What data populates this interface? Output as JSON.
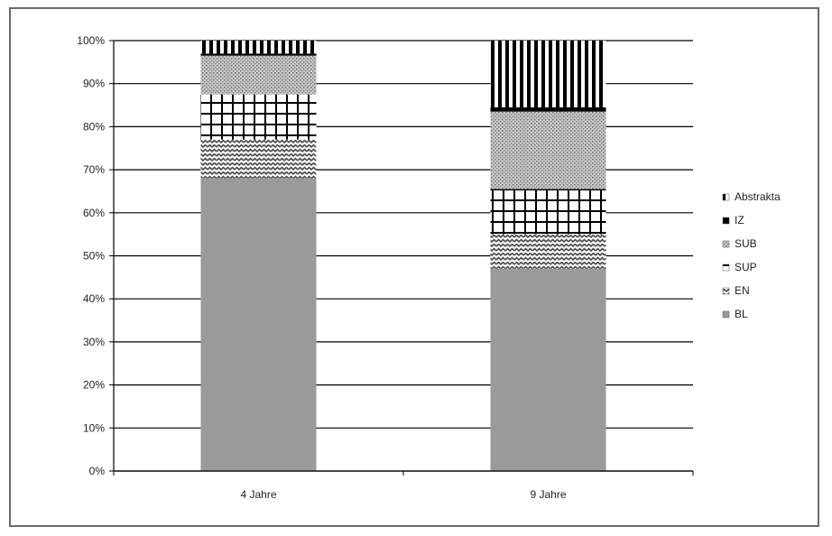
{
  "chart_data": {
    "type": "bar",
    "stacked": true,
    "categories": [
      "4 Jahre",
      "9 Jahre"
    ],
    "series": [
      {
        "name": "BL",
        "values": [
          68,
          47
        ],
        "pattern": "solid-gray"
      },
      {
        "name": "EN",
        "values": [
          9,
          8
        ],
        "pattern": "zigzag"
      },
      {
        "name": "SUP",
        "values": [
          10.5,
          10.5
        ],
        "pattern": "grid"
      },
      {
        "name": "SUB",
        "values": [
          9,
          18
        ],
        "pattern": "dots"
      },
      {
        "name": "IZ",
        "values": [
          0.5,
          1
        ],
        "pattern": "solid-black"
      },
      {
        "name": "Abstrakta",
        "values": [
          3,
          15.5
        ],
        "pattern": "vertical-stripes"
      }
    ],
    "ylim": [
      0,
      100
    ],
    "yticks": [
      "0%",
      "10%",
      "20%",
      "30%",
      "40%",
      "50%",
      "60%",
      "70%",
      "80%",
      "90%",
      "100%"
    ],
    "legend_order": [
      "Abstrakta",
      "IZ",
      "SUB",
      "SUP",
      "EN",
      "BL"
    ],
    "legend_position": "right",
    "grid": true,
    "colors": {
      "gray": "#9a9a9a",
      "black": "#000000",
      "grid": "#000000"
    }
  }
}
